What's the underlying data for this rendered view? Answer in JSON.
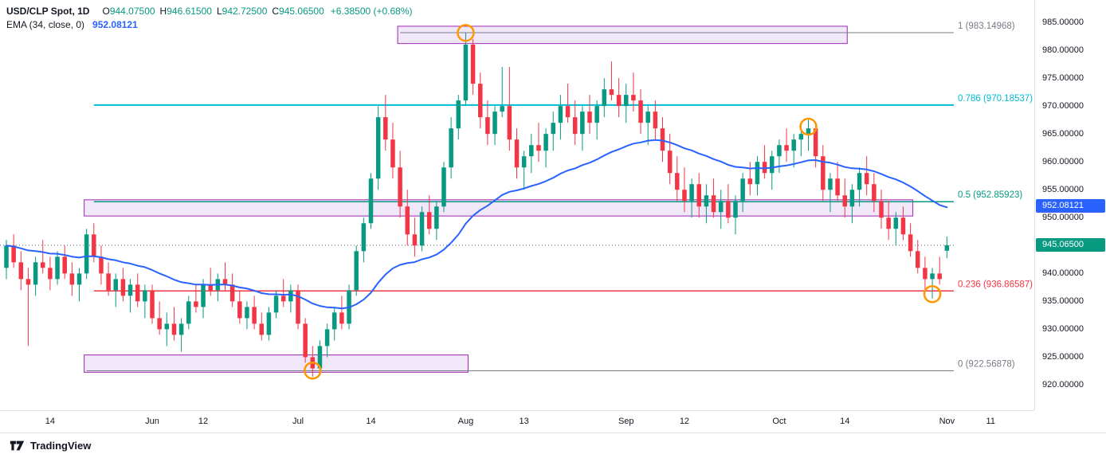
{
  "legend": {
    "title": "USD/CLP Spot, 1D",
    "fields": [
      {
        "label": "O",
        "value": "944.07500"
      },
      {
        "label": "H",
        "value": "946.61500"
      },
      {
        "label": "L",
        "value": "942.72500"
      },
      {
        "label": "C",
        "value": "945.06500"
      }
    ],
    "change": "+6.38500 (+0.68%)",
    "indicator": {
      "name": "EMA (34, close, 0)",
      "value": "952.08121"
    }
  },
  "price_scale": {
    "ticks": [
      985,
      980,
      975,
      970,
      965,
      960,
      955,
      950,
      945,
      940,
      935,
      930,
      925,
      920
    ],
    "badges": [
      {
        "name": "ema-value-badge",
        "text": "952.08121",
        "bg": "#2962ff",
        "price": 952.08121
      },
      {
        "name": "last-price-badge",
        "text": "945.06500",
        "bg": "#089981",
        "price": 945.065
      }
    ]
  },
  "time_axis": {
    "labels": [
      {
        "text": "14",
        "idx": 6
      },
      {
        "text": "Jun",
        "idx": 20
      },
      {
        "text": "12",
        "idx": 27
      },
      {
        "text": "Jul",
        "idx": 40
      },
      {
        "text": "14",
        "idx": 50
      },
      {
        "text": "Aug",
        "idx": 63
      },
      {
        "text": "13",
        "idx": 71
      },
      {
        "text": "Sep",
        "idx": 85
      },
      {
        "text": "12",
        "idx": 93
      },
      {
        "text": "Oct",
        "idx": 106
      },
      {
        "text": "14",
        "idx": 115
      },
      {
        "text": "Nov",
        "idx": 129
      },
      {
        "text": "11",
        "idx": 135
      }
    ]
  },
  "brand": {
    "name": "TradingView"
  },
  "chart_data": {
    "type": "candlestick",
    "symbol": "USD/CLP Spot",
    "interval": "1D",
    "ylim": [
      915.5,
      989
    ],
    "colors": {
      "up": "#089981",
      "down": "#f23645",
      "ema": "#2962ff",
      "zone_fill": "rgba(149,82,211,0.14)",
      "zone_border": "#9c27b0",
      "marker": "#ff9800",
      "last_price_line": "#56606b"
    },
    "ema": {
      "period": 34,
      "value": 952.08121,
      "color": "#2962ff"
    },
    "last_price": 945.065,
    "fib_levels": [
      {
        "label": "1 (983.14968)",
        "value": 983.14968,
        "color": "#787b86",
        "start_idx": 54,
        "width": 1
      },
      {
        "label": "0.786 (970.18537)",
        "value": 970.18537,
        "color": "#00bcd4",
        "start_idx": 12,
        "width": 2
      },
      {
        "label": "0.5 (952.85923)",
        "value": 952.85923,
        "color": "#089981",
        "start_idx": 12,
        "width": 1.5
      },
      {
        "label": "0.236 (936.86587)",
        "value": 936.86587,
        "color": "#f23645",
        "start_idx": 12,
        "width": 1.5
      },
      {
        "label": "0 (922.56878)",
        "value": 922.56878,
        "color": "#787b86",
        "start_idx": 11,
        "width": 1
      }
    ],
    "zones": [
      {
        "from_idx": 54,
        "to_idx": 115,
        "top": 984.3,
        "bottom": 981.2
      },
      {
        "from_idx": 11,
        "to_idx": 124,
        "top": 953.2,
        "bottom": 950.3
      },
      {
        "from_idx": 11,
        "to_idx": 63,
        "top": 925.4,
        "bottom": 922.3
      }
    ],
    "markers": [
      {
        "idx": 42,
        "price": 922.6
      },
      {
        "idx": 63,
        "price": 983.1
      },
      {
        "idx": 110,
        "price": 966.3
      },
      {
        "idx": 127,
        "price": 936.3
      }
    ],
    "candles": [
      [
        941,
        946,
        939,
        945
      ],
      [
        945,
        947,
        941,
        942
      ],
      [
        942,
        944,
        937,
        939
      ],
      [
        939,
        941,
        927,
        938
      ],
      [
        938,
        943,
        936,
        942
      ],
      [
        942,
        946,
        940,
        941
      ],
      [
        941,
        943,
        937,
        939
      ],
      [
        939,
        944,
        938,
        943
      ],
      [
        943,
        945,
        939,
        940
      ],
      [
        940,
        942,
        936,
        938
      ],
      [
        938,
        941,
        935,
        940
      ],
      [
        940,
        948,
        939,
        947
      ],
      [
        947,
        949,
        942,
        943
      ],
      [
        943,
        945,
        938,
        940
      ],
      [
        940,
        942,
        936,
        937
      ],
      [
        937,
        940,
        934,
        939
      ],
      [
        939,
        941,
        935,
        936
      ],
      [
        936,
        939,
        933,
        938
      ],
      [
        938,
        940,
        934,
        935
      ],
      [
        935,
        938,
        932,
        937
      ],
      [
        937,
        938,
        931,
        932
      ],
      [
        932,
        935,
        929,
        930
      ],
      [
        930,
        933,
        927,
        931
      ],
      [
        931,
        934,
        928,
        929
      ],
      [
        929,
        932,
        926,
        931
      ],
      [
        931,
        936,
        930,
        935
      ],
      [
        935,
        938,
        933,
        934
      ],
      [
        934,
        939,
        932,
        938
      ],
      [
        938,
        941,
        936,
        937
      ],
      [
        937,
        940,
        935,
        939
      ],
      [
        939,
        942,
        937,
        938
      ],
      [
        938,
        940,
        934,
        935
      ],
      [
        935,
        937,
        931,
        932
      ],
      [
        932,
        935,
        930,
        934
      ],
      [
        934,
        936,
        930,
        931
      ],
      [
        931,
        933,
        928,
        929
      ],
      [
        929,
        934,
        928,
        933
      ],
      [
        933,
        937,
        932,
        936
      ],
      [
        936,
        939,
        934,
        935
      ],
      [
        935,
        938,
        933,
        937
      ],
      [
        937,
        938,
        930,
        931
      ],
      [
        931,
        932,
        924,
        925
      ],
      [
        925,
        927,
        921.5,
        923
      ],
      [
        923,
        928,
        922,
        927
      ],
      [
        927,
        931,
        925,
        930
      ],
      [
        930,
        934,
        928,
        933
      ],
      [
        933,
        936,
        930,
        931
      ],
      [
        931,
        938,
        930,
        937
      ],
      [
        937,
        945,
        936,
        944
      ],
      [
        944,
        950,
        942,
        949
      ],
      [
        949,
        958,
        948,
        957
      ],
      [
        957,
        970,
        955,
        968
      ],
      [
        968,
        972,
        962,
        964
      ],
      [
        964,
        967,
        957,
        959
      ],
      [
        959,
        962,
        950,
        952
      ],
      [
        952,
        955,
        945,
        947
      ],
      [
        947,
        950,
        943,
        945
      ],
      [
        945,
        952,
        944,
        951
      ],
      [
        951,
        954,
        947,
        948
      ],
      [
        948,
        953,
        946,
        952
      ],
      [
        952,
        960,
        951,
        959
      ],
      [
        959,
        968,
        957,
        966
      ],
      [
        966,
        972,
        964,
        971
      ],
      [
        971,
        983.1,
        970,
        981
      ],
      [
        981,
        982,
        972,
        974
      ],
      [
        974,
        976,
        966,
        968
      ],
      [
        968,
        971,
        963,
        965
      ],
      [
        965,
        970,
        963,
        969
      ],
      [
        969,
        977,
        968,
        970
      ],
      [
        970,
        977,
        962,
        964
      ],
      [
        964,
        966,
        957,
        959
      ],
      [
        959,
        962,
        955,
        961
      ],
      [
        961,
        965,
        958,
        963
      ],
      [
        963,
        967,
        960,
        962
      ],
      [
        962,
        966,
        959,
        965
      ],
      [
        965,
        969,
        962,
        967
      ],
      [
        967,
        972,
        964,
        970
      ],
      [
        970,
        974,
        967,
        968
      ],
      [
        968,
        971,
        963,
        965
      ],
      [
        965,
        970,
        962,
        969
      ],
      [
        969,
        972,
        965,
        967
      ],
      [
        967,
        971,
        964,
        970
      ],
      [
        970,
        975,
        968,
        973
      ],
      [
        973,
        978,
        971,
        972
      ],
      [
        972,
        975,
        968,
        970
      ],
      [
        970,
        974,
        967,
        972
      ],
      [
        972,
        976,
        969,
        971
      ],
      [
        971,
        973,
        965,
        967
      ],
      [
        967,
        970,
        963,
        969
      ],
      [
        969,
        971,
        964,
        966
      ],
      [
        966,
        968,
        960,
        962
      ],
      [
        962,
        965,
        956,
        958
      ],
      [
        958,
        961,
        953,
        955
      ],
      [
        955,
        959,
        951,
        953
      ],
      [
        953,
        957,
        950,
        956
      ],
      [
        956,
        958,
        950,
        952
      ],
      [
        952,
        956,
        949,
        954
      ],
      [
        954,
        957,
        950,
        951
      ],
      [
        951,
        955,
        948,
        953
      ],
      [
        953,
        956,
        949,
        950
      ],
      [
        950,
        954,
        947,
        953
      ],
      [
        953,
        958,
        951,
        957
      ],
      [
        957,
        960,
        954,
        956
      ],
      [
        956,
        961,
        954,
        960
      ],
      [
        960,
        963,
        957,
        958
      ],
      [
        958,
        962,
        955,
        961
      ],
      [
        961,
        964,
        958,
        963
      ],
      [
        963,
        966,
        960,
        962
      ],
      [
        962,
        965,
        959,
        964
      ],
      [
        964,
        967,
        961,
        965
      ],
      [
        965,
        967.5,
        962,
        966
      ],
      [
        966,
        967,
        959,
        961
      ],
      [
        961,
        963,
        953,
        955
      ],
      [
        955,
        958,
        951,
        957
      ],
      [
        957,
        960,
        953,
        954
      ],
      [
        954,
        957,
        950,
        952
      ],
      [
        952,
        956,
        949,
        955
      ],
      [
        955,
        959,
        952,
        958
      ],
      [
        958,
        961,
        954,
        956
      ],
      [
        956,
        958,
        951,
        953
      ],
      [
        953,
        955,
        948,
        950
      ],
      [
        950,
        953,
        946,
        948
      ],
      [
        948,
        951,
        945,
        950
      ],
      [
        950,
        952,
        946,
        947
      ],
      [
        947,
        949,
        943,
        944
      ],
      [
        944,
        946,
        940,
        941
      ],
      [
        941,
        943,
        937,
        939
      ],
      [
        939,
        941,
        935.5,
        940
      ],
      [
        940,
        943,
        938,
        939
      ],
      [
        944.075,
        946.615,
        942.725,
        945.065
      ]
    ]
  }
}
